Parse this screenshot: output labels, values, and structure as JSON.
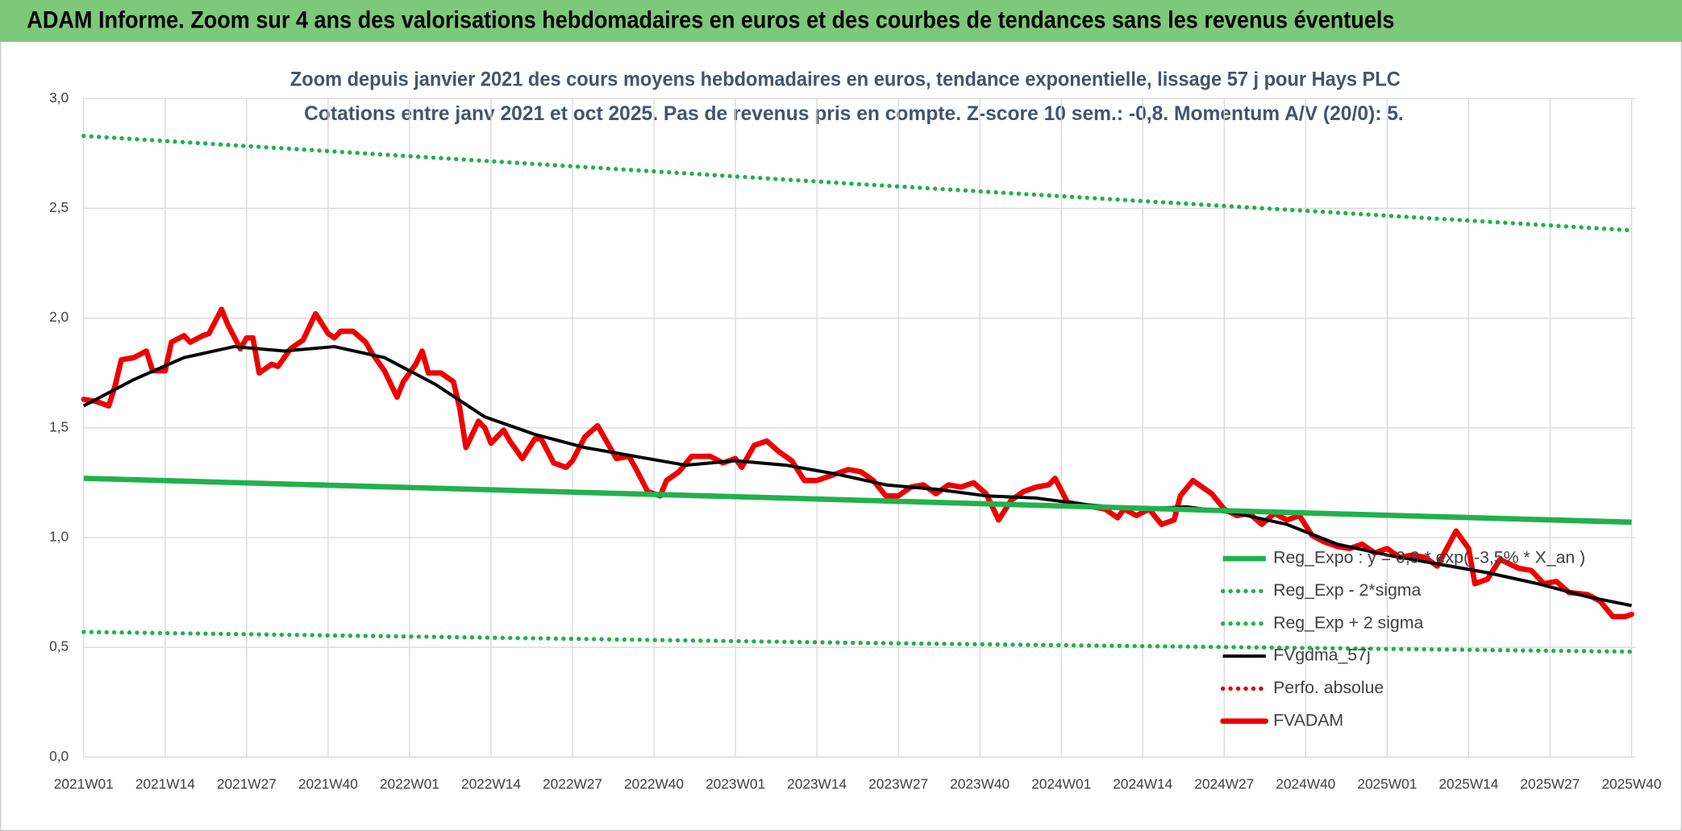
{
  "chart_data": {
    "type": "line",
    "title": "ADAM Informe. Zoom sur 4 ans des valorisations hebdomadaires en euros et des courbes de tendances sans les revenus éventuels",
    "subtitle": [
      "Zoom depuis janvier 2021 des cours moyens hebdomadaires en euros, tendance exponentielle, lissage 57 j pour Hays PLC",
      "Cotations entre janv 2021 et oct 2025. Pas de revenus pris en compte. Z-score 10 sem.: -0,8. Momentum A/V (20/0): 5."
    ],
    "xlim": [
      0,
      247
    ],
    "xticks": [
      {
        "value": 0,
        "label": "2021W01"
      },
      {
        "value": 13,
        "label": "2021W14"
      },
      {
        "value": 26,
        "label": "2021W27"
      },
      {
        "value": 39,
        "label": "2021W40"
      },
      {
        "value": 52,
        "label": "2022W01"
      },
      {
        "value": 65,
        "label": "2022W14"
      },
      {
        "value": 78,
        "label": "2022W27"
      },
      {
        "value": 91,
        "label": "2022W40"
      },
      {
        "value": 104,
        "label": "2023W01"
      },
      {
        "value": 117,
        "label": "2023W14"
      },
      {
        "value": 130,
        "label": "2023W27"
      },
      {
        "value": 143,
        "label": "2023W40"
      },
      {
        "value": 156,
        "label": "2024W01"
      },
      {
        "value": 169,
        "label": "2024W14"
      },
      {
        "value": 182,
        "label": "2024W27"
      },
      {
        "value": 195,
        "label": "2024W40"
      },
      {
        "value": 208,
        "label": "2025W01"
      },
      {
        "value": 221,
        "label": "2025W14"
      },
      {
        "value": 234,
        "label": "2025W27"
      },
      {
        "value": 247,
        "label": "2025W40"
      }
    ],
    "ylim": [
      0,
      3
    ],
    "yticks": [
      {
        "value": 0,
        "label": "0,0"
      },
      {
        "value": 0.5,
        "label": "0,5"
      },
      {
        "value": 1,
        "label": "1,0"
      },
      {
        "value": 1.5,
        "label": "1,5"
      },
      {
        "value": 2,
        "label": "2,0"
      },
      {
        "value": 2.5,
        "label": "2,5"
      },
      {
        "value": 3,
        "label": "3,0"
      }
    ],
    "grid": true,
    "legend": "lower right",
    "series": [
      {
        "name": "Reg_Expo : y = 0,9 * exp( -3,5% *  X_an )",
        "color": "#22b14c",
        "style": "solid",
        "x": [
          0,
          124,
          247
        ],
        "values": [
          1.27,
          1.17,
          1.07
        ]
      },
      {
        "name": "Reg_Exp - 2*sigma",
        "color": "#22b14c",
        "style": "dotted",
        "x": [
          0,
          124,
          247
        ],
        "values": [
          0.57,
          0.52,
          0.48
        ]
      },
      {
        "name": "Reg_Exp + 2 sigma",
        "color": "#22b14c",
        "style": "dotted",
        "x": [
          0,
          124,
          247
        ],
        "values": [
          2.83,
          2.61,
          2.4
        ]
      },
      {
        "name": "FVgdma_57j",
        "color": "#000000",
        "style": "solid",
        "x": [
          0,
          8,
          16,
          24,
          32,
          40,
          48,
          56,
          64,
          72,
          80,
          88,
          96,
          104,
          112,
          120,
          128,
          136,
          144,
          152,
          160,
          168,
          176,
          184,
          192,
          200,
          208,
          216,
          224,
          232,
          240,
          247
        ],
        "values": [
          1.6,
          1.72,
          1.82,
          1.87,
          1.85,
          1.87,
          1.82,
          1.7,
          1.55,
          1.47,
          1.41,
          1.37,
          1.33,
          1.35,
          1.33,
          1.29,
          1.24,
          1.22,
          1.19,
          1.18,
          1.15,
          1.13,
          1.14,
          1.11,
          1.06,
          0.97,
          0.92,
          0.88,
          0.84,
          0.79,
          0.73,
          0.69
        ]
      },
      {
        "name": "Perfo. absolue",
        "color": "#e00000",
        "style": "dotted",
        "x": [],
        "values": []
      },
      {
        "name": "FVADAM",
        "color": "#ee0000",
        "style": "thick",
        "x": [
          0,
          2,
          4,
          5,
          6,
          8,
          10,
          11,
          13,
          14,
          16,
          17,
          19,
          20,
          22,
          23,
          25,
          26,
          27,
          28,
          30,
          31,
          33,
          35,
          37,
          39,
          40,
          41,
          43,
          45,
          46,
          48,
          50,
          51,
          53,
          54,
          55,
          57,
          59,
          60,
          61,
          63,
          64,
          65,
          67,
          68,
          70,
          72,
          73,
          75,
          77,
          78,
          80,
          82,
          83,
          85,
          87,
          88,
          90,
          92,
          93,
          95,
          97,
          100,
          102,
          104,
          105,
          107,
          109,
          111,
          113,
          115,
          117,
          119,
          122,
          124,
          126,
          128,
          130,
          132,
          134,
          136,
          138,
          140,
          142,
          144,
          146,
          148,
          150,
          152,
          154,
          155,
          157,
          159,
          161,
          163,
          165,
          166,
          168,
          170,
          172,
          174,
          175,
          177,
          180,
          182,
          184,
          186,
          188,
          190,
          192,
          194,
          196,
          198,
          200,
          202,
          204,
          206,
          208,
          210,
          212,
          214,
          216,
          219,
          221,
          222,
          224,
          226,
          229,
          231,
          233,
          235,
          237,
          240,
          242,
          244,
          246,
          247
        ],
        "values": [
          1.63,
          1.62,
          1.6,
          1.69,
          1.81,
          1.82,
          1.85,
          1.76,
          1.76,
          1.89,
          1.92,
          1.89,
          1.92,
          1.93,
          2.04,
          1.97,
          1.86,
          1.91,
          1.91,
          1.75,
          1.79,
          1.78,
          1.86,
          1.9,
          2.02,
          1.93,
          1.91,
          1.94,
          1.94,
          1.89,
          1.84,
          1.76,
          1.64,
          1.71,
          1.79,
          1.85,
          1.75,
          1.75,
          1.71,
          1.59,
          1.41,
          1.53,
          1.5,
          1.43,
          1.49,
          1.44,
          1.36,
          1.45,
          1.45,
          1.34,
          1.32,
          1.35,
          1.46,
          1.51,
          1.46,
          1.36,
          1.37,
          1.32,
          1.21,
          1.19,
          1.26,
          1.3,
          1.37,
          1.37,
          1.34,
          1.36,
          1.32,
          1.42,
          1.44,
          1.39,
          1.35,
          1.26,
          1.26,
          1.28,
          1.31,
          1.3,
          1.26,
          1.19,
          1.19,
          1.23,
          1.24,
          1.2,
          1.24,
          1.23,
          1.25,
          1.2,
          1.08,
          1.17,
          1.21,
          1.23,
          1.24,
          1.27,
          1.16,
          1.15,
          1.14,
          1.13,
          1.09,
          1.13,
          1.1,
          1.13,
          1.06,
          1.08,
          1.19,
          1.26,
          1.2,
          1.13,
          1.1,
          1.11,
          1.06,
          1.11,
          1.08,
          1.1,
          1.01,
          0.98,
          0.96,
          0.95,
          0.97,
          0.93,
          0.95,
          0.91,
          0.92,
          0.91,
          0.87,
          1.03,
          0.95,
          0.79,
          0.81,
          0.9,
          0.86,
          0.85,
          0.79,
          0.8,
          0.75,
          0.74,
          0.71,
          0.64,
          0.64,
          0.65
        ]
      }
    ]
  }
}
